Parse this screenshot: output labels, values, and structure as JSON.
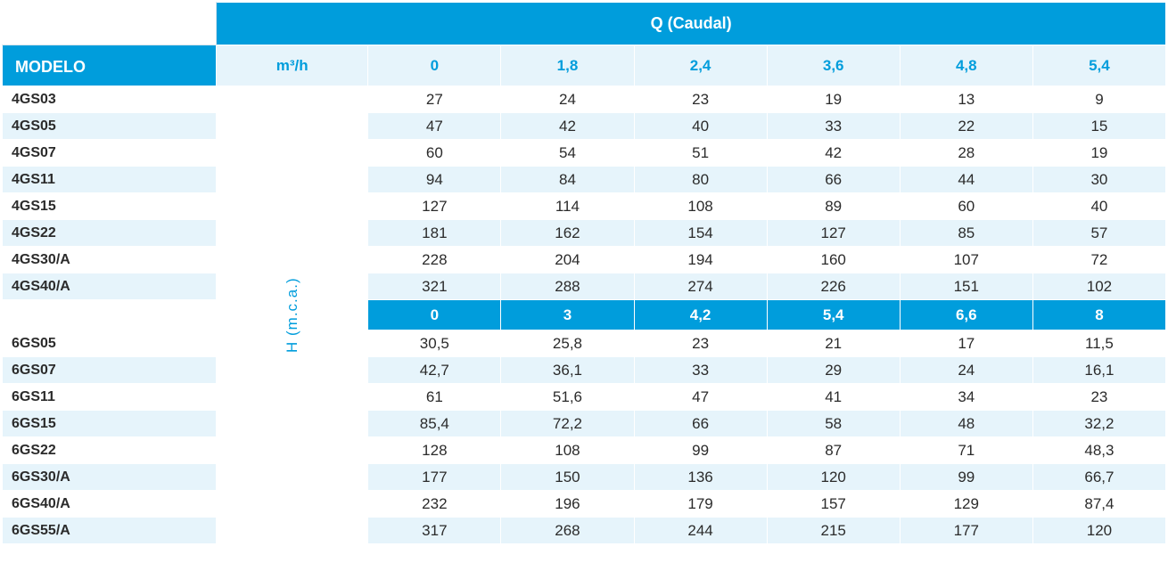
{
  "header": {
    "model_label": "MODELO",
    "q_label": "Q (Caudal)",
    "unit_label": "m³/h",
    "vaxis_label": "H (m.c.a.)"
  },
  "section1": {
    "flow_headers": [
      "0",
      "1,8",
      "2,4",
      "3,6",
      "4,8",
      "5,4"
    ],
    "rows": [
      {
        "model": "4GS03",
        "v": [
          "27",
          "24",
          "23",
          "19",
          "13",
          "9"
        ]
      },
      {
        "model": "4GS05",
        "v": [
          "47",
          "42",
          "40",
          "33",
          "22",
          "15"
        ]
      },
      {
        "model": "4GS07",
        "v": [
          "60",
          "54",
          "51",
          "42",
          "28",
          "19"
        ]
      },
      {
        "model": "4GS11",
        "v": [
          "94",
          "84",
          "80",
          "66",
          "44",
          "30"
        ]
      },
      {
        "model": "4GS15",
        "v": [
          "127",
          "114",
          "108",
          "89",
          "60",
          "40"
        ]
      },
      {
        "model": "4GS22",
        "v": [
          "181",
          "162",
          "154",
          "127",
          "85",
          "57"
        ]
      },
      {
        "model": "4GS30/A",
        "v": [
          "228",
          "204",
          "194",
          "160",
          "107",
          "72"
        ]
      },
      {
        "model": "4GS40/A",
        "v": [
          "321",
          "288",
          "274",
          "226",
          "151",
          "102"
        ]
      }
    ]
  },
  "section2": {
    "flow_headers": [
      "0",
      "3",
      "4,2",
      "5,4",
      "6,6",
      "8"
    ],
    "rows": [
      {
        "model": "6GS05",
        "v": [
          "30,5",
          "25,8",
          "23",
          "21",
          "17",
          "11,5"
        ]
      },
      {
        "model": "6GS07",
        "v": [
          "42,7",
          "36,1",
          "33",
          "29",
          "24",
          "16,1"
        ]
      },
      {
        "model": "6GS11",
        "v": [
          "61",
          "51,6",
          "47",
          "41",
          "34",
          "23"
        ]
      },
      {
        "model": "6GS15",
        "v": [
          "85,4",
          "72,2",
          "66",
          "58",
          "48",
          "32,2"
        ]
      },
      {
        "model": "6GS22",
        "v": [
          "128",
          "108",
          "99",
          "87",
          "71",
          "48,3"
        ]
      },
      {
        "model": "6GS30/A",
        "v": [
          "177",
          "150",
          "136",
          "120",
          "99",
          "66,7"
        ]
      },
      {
        "model": "6GS40/A",
        "v": [
          "232",
          "196",
          "179",
          "157",
          "129",
          "87,4"
        ]
      },
      {
        "model": "6GS55/A",
        "v": [
          "317",
          "268",
          "244",
          "215",
          "177",
          "120"
        ]
      }
    ]
  },
  "style": {
    "primary_color": "#009ddc",
    "light_band": "#e6f4fb",
    "text_color": "#2b2b2b"
  }
}
